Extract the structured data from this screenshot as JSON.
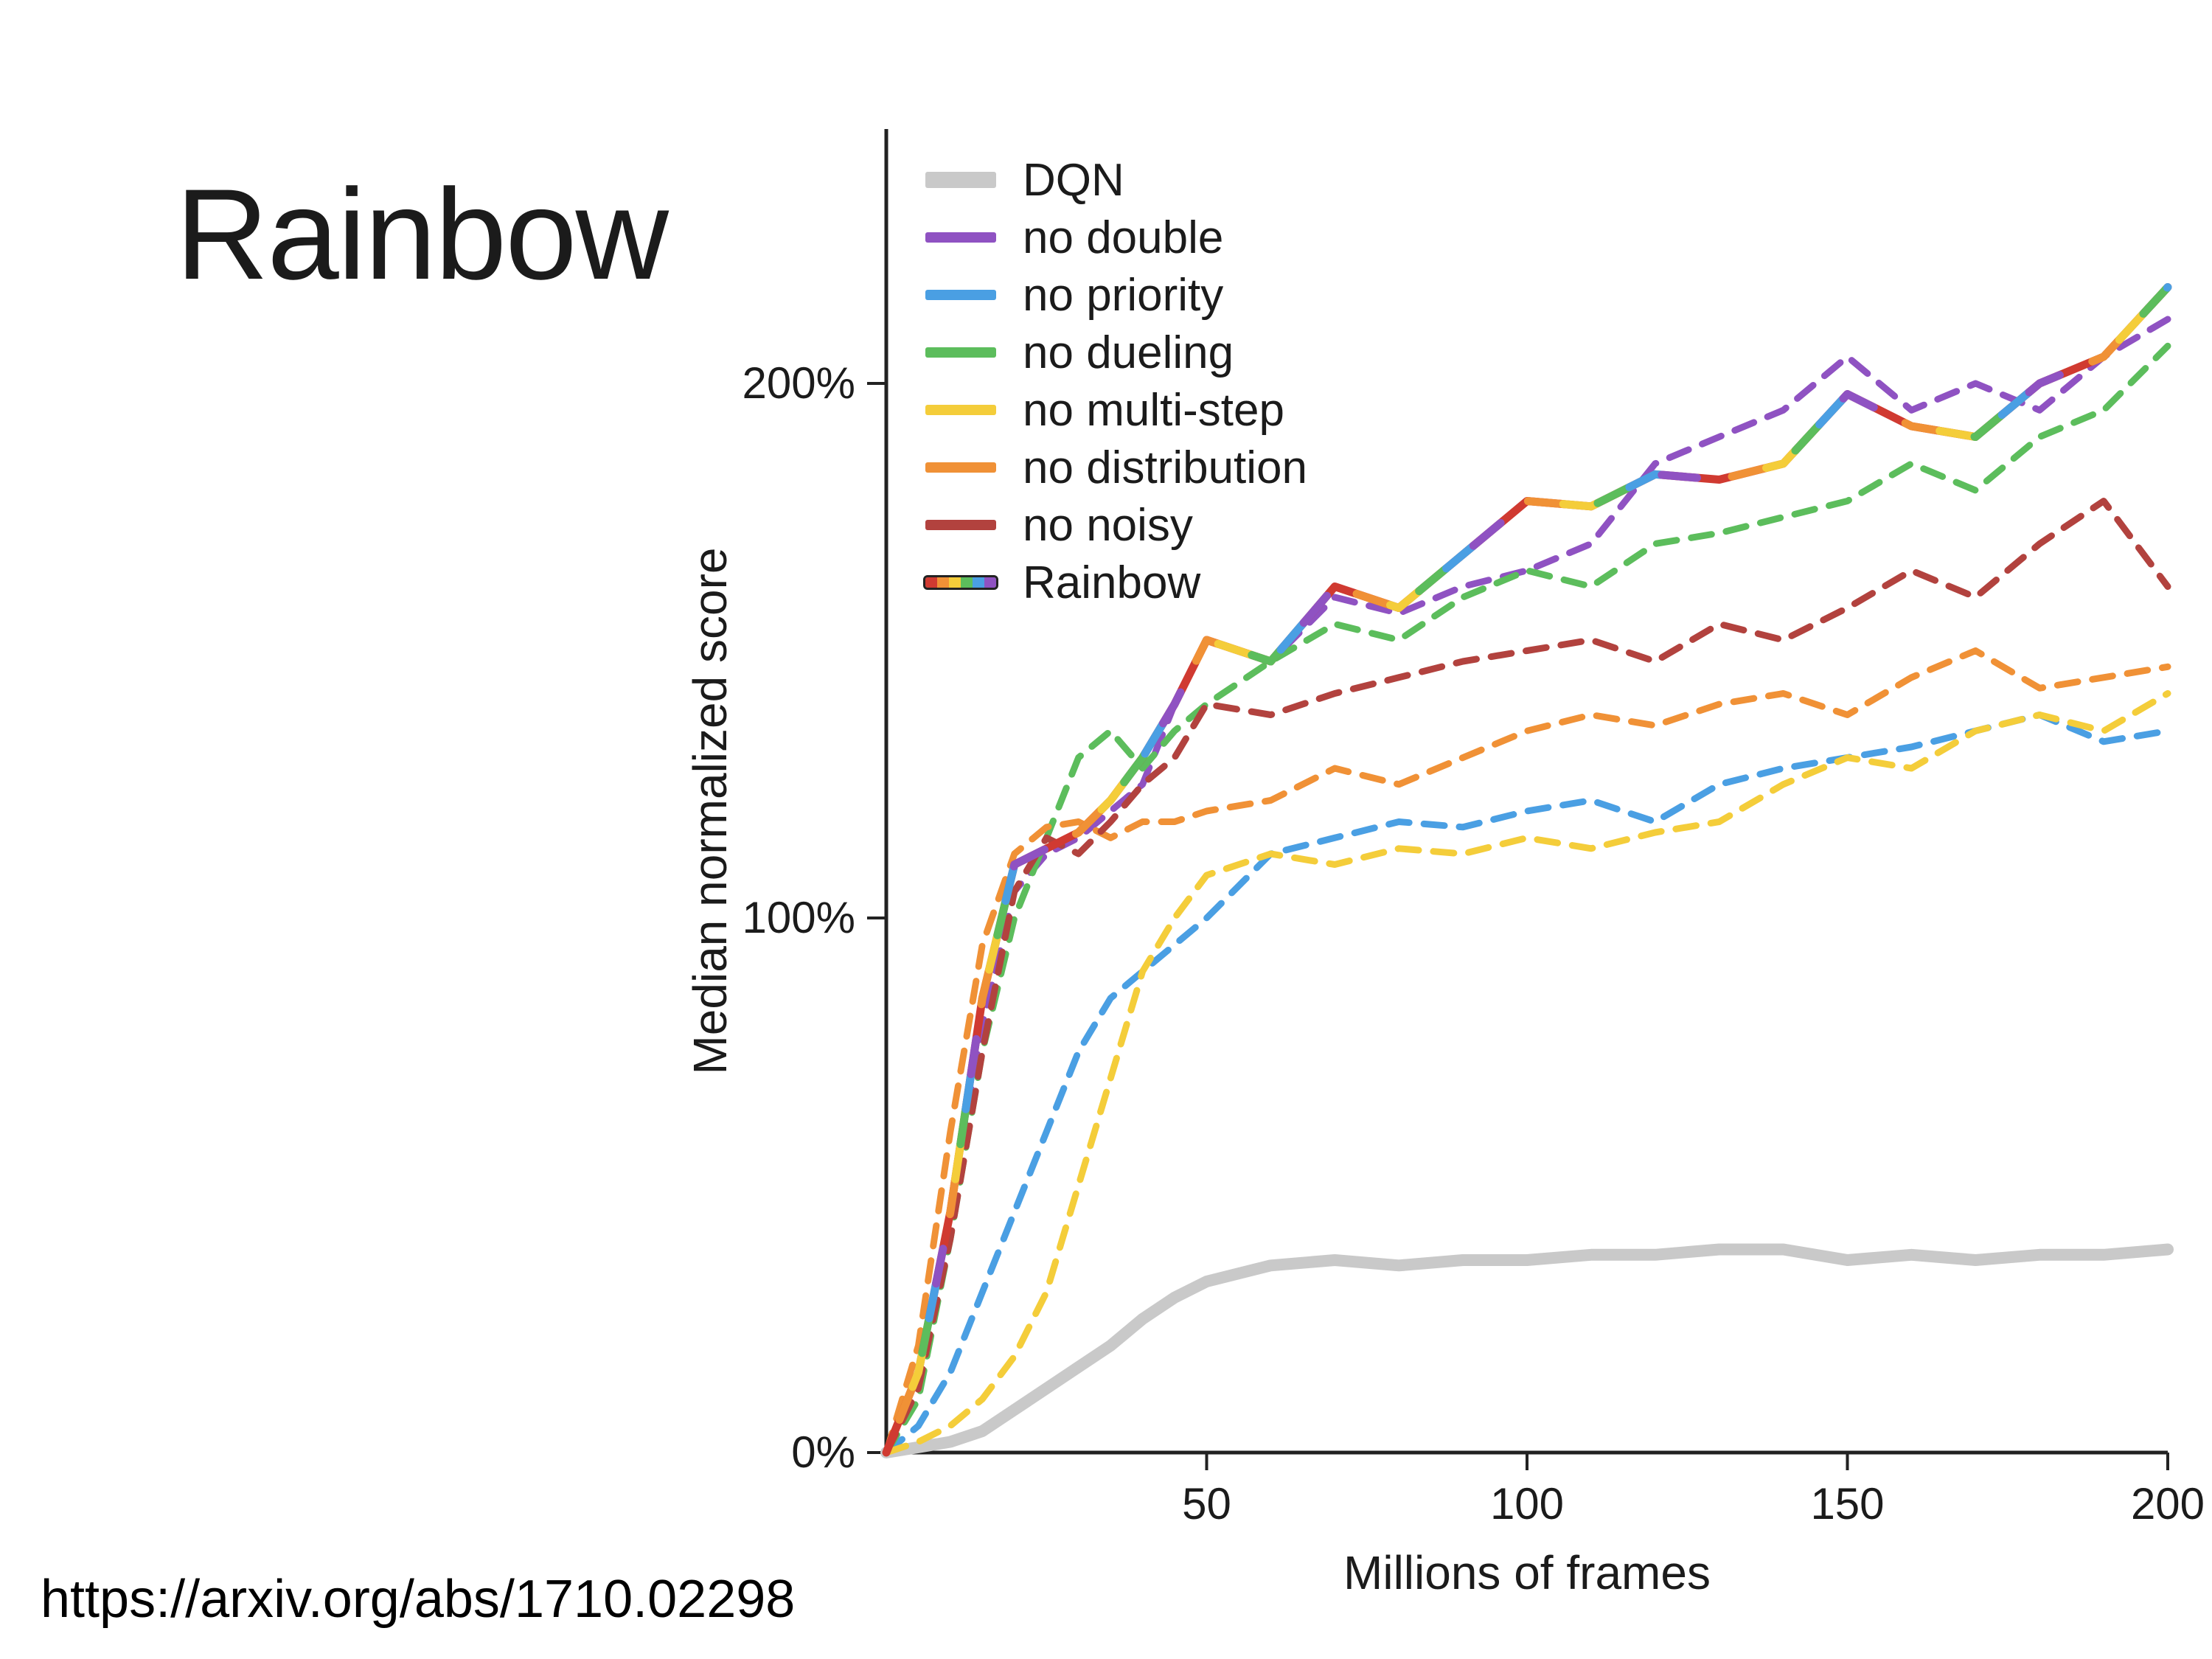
{
  "slide": {
    "title": "Rainbow",
    "url": "https://arxiv.org/abs/1710.02298"
  },
  "chart_data": {
    "type": "line",
    "title": "",
    "xlabel": "Millions of frames",
    "ylabel": "Median normalized score",
    "xlim": [
      0,
      200
    ],
    "ylim": [
      0,
      240
    ],
    "x_ticks": [
      50,
      100,
      150,
      200
    ],
    "y_ticks": [
      {
        "value": 0,
        "label": "0%"
      },
      {
        "value": 100,
        "label": "100%"
      },
      {
        "value": 200,
        "label": "200%"
      }
    ],
    "grid": false,
    "legend_position": "top-left",
    "rainbow_colors": [
      "#d03a31",
      "#f09136",
      "#f4cd3a",
      "#5cbd5c",
      "#4a9fe3",
      "#8f52c2"
    ],
    "x": [
      0,
      5,
      10,
      15,
      20,
      25,
      30,
      35,
      40,
      45,
      50,
      60,
      70,
      80,
      90,
      100,
      110,
      120,
      130,
      140,
      150,
      160,
      170,
      180,
      190,
      200
    ],
    "series": [
      {
        "name": "DQN",
        "color": "#c9c9c9",
        "style": "solid",
        "width": 16,
        "values": [
          0,
          1,
          2,
          4,
          8,
          12,
          16,
          20,
          25,
          29,
          32,
          35,
          36,
          35,
          36,
          36,
          37,
          37,
          38,
          38,
          36,
          37,
          36,
          37,
          37,
          38
        ]
      },
      {
        "name": "no double",
        "color": "#8f52c2",
        "style": "dashed",
        "width": 9,
        "values": [
          0,
          15,
          45,
          80,
          105,
          112,
          115,
          120,
          125,
          140,
          152,
          148,
          160,
          157,
          162,
          165,
          170,
          185,
          190,
          195,
          205,
          195,
          200,
          195,
          205,
          212
        ]
      },
      {
        "name": "no priority",
        "color": "#4a9fe3",
        "style": "dashed",
        "width": 9,
        "values": [
          0,
          5,
          15,
          30,
          45,
          60,
          75,
          85,
          90,
          95,
          100,
          112,
          115,
          118,
          117,
          120,
          122,
          118,
          125,
          128,
          130,
          132,
          135,
          138,
          133,
          135
        ]
      },
      {
        "name": "no dueling",
        "color": "#5cbd5c",
        "style": "dashed",
        "width": 9,
        "values": [
          0,
          10,
          40,
          75,
          100,
          115,
          130,
          135,
          128,
          135,
          140,
          148,
          155,
          152,
          160,
          165,
          162,
          170,
          172,
          175,
          178,
          185,
          180,
          190,
          195,
          207
        ]
      },
      {
        "name": "no multi-step",
        "color": "#f4cd3a",
        "style": "dashed",
        "width": 9,
        "values": [
          0,
          2,
          5,
          10,
          18,
          30,
          50,
          70,
          90,
          100,
          108,
          112,
          110,
          113,
          112,
          115,
          113,
          116,
          118,
          125,
          130,
          128,
          135,
          138,
          135,
          142
        ]
      },
      {
        "name": "no distribution",
        "color": "#f09136",
        "style": "dashed",
        "width": 9,
        "values": [
          0,
          20,
          60,
          95,
          112,
          117,
          118,
          115,
          118,
          118,
          120,
          122,
          128,
          125,
          130,
          135,
          138,
          136,
          140,
          142,
          138,
          145,
          150,
          143,
          145,
          147
        ]
      },
      {
        "name": "no noisy",
        "color": "#b2423e",
        "style": "dashed",
        "width": 9,
        "values": [
          0,
          12,
          40,
          75,
          105,
          115,
          112,
          118,
          125,
          130,
          140,
          138,
          142,
          145,
          148,
          150,
          152,
          148,
          155,
          152,
          158,
          165,
          160,
          170,
          178,
          162
        ]
      },
      {
        "name": "Rainbow",
        "color": "rainbow",
        "style": "solid",
        "width": 11,
        "values": [
          0,
          15,
          45,
          85,
          110,
          113,
          116,
          122,
          130,
          140,
          152,
          148,
          162,
          158,
          168,
          178,
          177,
          183,
          182,
          185,
          198,
          192,
          190,
          200,
          205,
          218
        ]
      }
    ]
  }
}
